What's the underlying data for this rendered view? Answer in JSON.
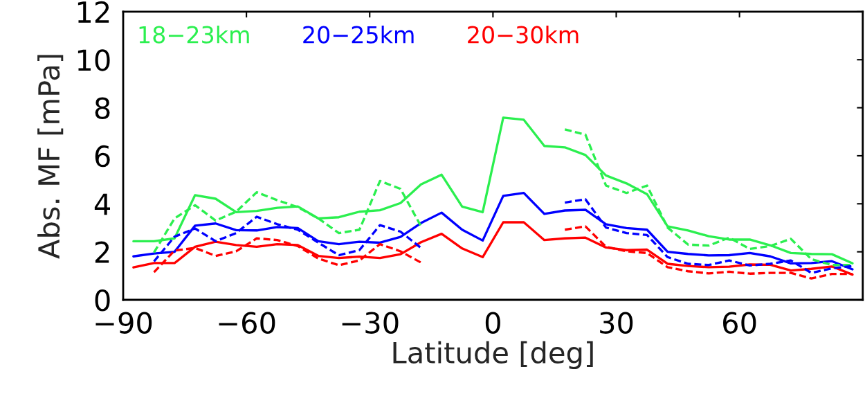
{
  "chart_data": {
    "type": "line",
    "xlabel": "Latitude [deg]",
    "ylabel": "Abs. MF [mPa]",
    "xlim": [
      -90,
      90
    ],
    "xticks": [
      -90,
      -60,
      -30,
      0,
      30,
      60
    ],
    "ylim": [
      0,
      12
    ],
    "yticks": [
      0,
      2,
      4,
      6,
      8,
      10,
      12
    ],
    "grid": false,
    "legend": "top left",
    "marker": "none",
    "series": [
      {
        "name": "18−23km",
        "color": "#2bef4f",
        "line_style": "solid",
        "x": [
          -87.5,
          -82.5,
          -77.5,
          -72.5,
          -67.5,
          -62.5,
          -57.5,
          -52.5,
          -47.5,
          -42.5,
          -37.5,
          -32.5,
          -27.5,
          -22.5,
          -17.5,
          -12.5,
          -7.5,
          -2.5,
          2.5,
          7.5,
          12.5,
          17.5,
          22.5,
          27.5,
          32.5,
          37.5,
          42.5,
          47.5,
          52.5,
          57.5,
          62.5,
          67.5,
          72.5,
          77.5,
          82.5,
          87.5
        ],
        "values": [
          2.44,
          2.44,
          2.56,
          4.36,
          4.21,
          3.65,
          3.7,
          3.83,
          3.89,
          3.39,
          3.44,
          3.67,
          3.73,
          4.03,
          4.81,
          5.21,
          3.88,
          3.65,
          7.59,
          7.5,
          6.41,
          6.35,
          6.03,
          5.18,
          4.85,
          4.4,
          3.06,
          2.89,
          2.65,
          2.51,
          2.51,
          2.27,
          1.95,
          1.91,
          1.9,
          1.52
        ]
      },
      {
        "name": "20−25km",
        "color": "#0000ff",
        "line_style": "solid",
        "x": [
          -87.5,
          -82.5,
          -77.5,
          -72.5,
          -67.5,
          -62.5,
          -57.5,
          -52.5,
          -47.5,
          -42.5,
          -37.5,
          -32.5,
          -27.5,
          -22.5,
          -17.5,
          -12.5,
          -7.5,
          -2.5,
          2.5,
          7.5,
          12.5,
          17.5,
          22.5,
          27.5,
          32.5,
          37.5,
          42.5,
          47.5,
          52.5,
          57.5,
          62.5,
          67.5,
          72.5,
          77.5,
          82.5,
          87.5
        ],
        "values": [
          1.81,
          1.93,
          2.0,
          3.09,
          3.18,
          2.9,
          2.89,
          3.03,
          2.99,
          2.44,
          2.32,
          2.42,
          2.38,
          2.62,
          3.2,
          3.63,
          2.92,
          2.47,
          4.33,
          4.45,
          3.58,
          3.72,
          3.75,
          3.15,
          2.99,
          2.92,
          2.0,
          1.91,
          1.85,
          1.86,
          1.95,
          1.81,
          1.52,
          1.53,
          1.61,
          1.27
        ]
      },
      {
        "name": "20−30km",
        "color": "#ff0000",
        "line_style": "solid",
        "x": [
          -87.5,
          -82.5,
          -77.5,
          -72.5,
          -67.5,
          -62.5,
          -57.5,
          -52.5,
          -47.5,
          -42.5,
          -37.5,
          -32.5,
          -27.5,
          -22.5,
          -17.5,
          -12.5,
          -7.5,
          -2.5,
          2.5,
          7.5,
          12.5,
          17.5,
          22.5,
          27.5,
          32.5,
          37.5,
          42.5,
          47.5,
          52.5,
          57.5,
          62.5,
          67.5,
          72.5,
          77.5,
          82.5,
          87.5
        ],
        "values": [
          1.35,
          1.53,
          1.53,
          2.21,
          2.42,
          2.28,
          2.21,
          2.32,
          2.28,
          1.83,
          1.74,
          1.8,
          1.74,
          1.9,
          2.4,
          2.75,
          2.14,
          1.78,
          3.23,
          3.23,
          2.49,
          2.56,
          2.59,
          2.18,
          2.07,
          2.09,
          1.5,
          1.41,
          1.36,
          1.38,
          1.47,
          1.46,
          1.22,
          1.29,
          1.39,
          1.05
        ]
      },
      {
        "color": "#2bef4f",
        "line_style": "dashed",
        "x": [
          -82.5,
          -77.5,
          -72.5,
          -67.5,
          -62.5,
          -57.5,
          -52.5,
          -47.5,
          -42.5,
          -37.5,
          -32.5,
          -27.5,
          -22.5,
          -17.5,
          -12.5,
          -7.5,
          -2.5,
          2.5,
          7.5,
          12.5,
          17.5,
          22.5,
          27.5,
          32.5,
          37.5,
          42.5,
          47.5,
          52.5,
          57.5,
          62.5,
          67.5,
          72.5,
          77.5,
          82.5,
          87.5
        ],
        "values": [
          1.97,
          3.39,
          3.94,
          3.3,
          3.67,
          4.48,
          4.15,
          3.86,
          3.39,
          2.78,
          2.92,
          4.95,
          4.62,
          3.06,
          null,
          null,
          null,
          null,
          null,
          null,
          7.1,
          6.88,
          4.76,
          4.45,
          4.76,
          3.01,
          2.3,
          2.26,
          2.59,
          2.12,
          2.24,
          2.54,
          1.69,
          1.45,
          1.45
        ]
      },
      {
        "color": "#0000ff",
        "line_style": "dashed",
        "x": [
          -82.5,
          -77.5,
          -72.5,
          -67.5,
          -62.5,
          -57.5,
          -52.5,
          -47.5,
          -42.5,
          -37.5,
          -32.5,
          -27.5,
          -22.5,
          -17.5,
          -12.5,
          -7.5,
          -2.5,
          2.5,
          7.5,
          12.5,
          17.5,
          22.5,
          27.5,
          32.5,
          37.5,
          42.5,
          47.5,
          52.5,
          57.5,
          62.5,
          67.5,
          72.5,
          77.5,
          82.5,
          87.5
        ],
        "values": [
          1.6,
          2.63,
          2.97,
          2.44,
          2.78,
          3.46,
          3.15,
          2.92,
          2.38,
          1.86,
          2.07,
          3.11,
          2.84,
          2.16,
          null,
          null,
          null,
          null,
          null,
          null,
          4.05,
          4.19,
          3.01,
          2.78,
          2.7,
          1.78,
          1.5,
          1.45,
          1.64,
          1.43,
          1.5,
          1.64,
          1.12,
          1.31,
          1.41
        ]
      },
      {
        "color": "#ff0000",
        "line_style": "dashed",
        "x": [
          -82.5,
          -77.5,
          -72.5,
          -67.5,
          -62.5,
          -57.5,
          -52.5,
          -47.5,
          -42.5,
          -37.5,
          -32.5,
          -27.5,
          -22.5,
          -17.5,
          -12.5,
          -7.5,
          -2.5,
          2.5,
          7.5,
          12.5,
          17.5,
          22.5,
          27.5,
          32.5,
          37.5,
          42.5,
          47.5,
          52.5,
          57.5,
          62.5,
          67.5,
          72.5,
          77.5,
          82.5,
          87.5
        ],
        "values": [
          1.15,
          2.05,
          2.16,
          1.83,
          2.02,
          2.56,
          2.49,
          2.24,
          1.72,
          1.44,
          1.64,
          2.32,
          2.02,
          1.55,
          null,
          null,
          null,
          null,
          null,
          null,
          2.92,
          3.06,
          2.21,
          2.02,
          1.95,
          1.36,
          1.19,
          1.1,
          1.17,
          1.09,
          1.12,
          1.12,
          0.89,
          1.08,
          1.08
        ]
      }
    ]
  }
}
